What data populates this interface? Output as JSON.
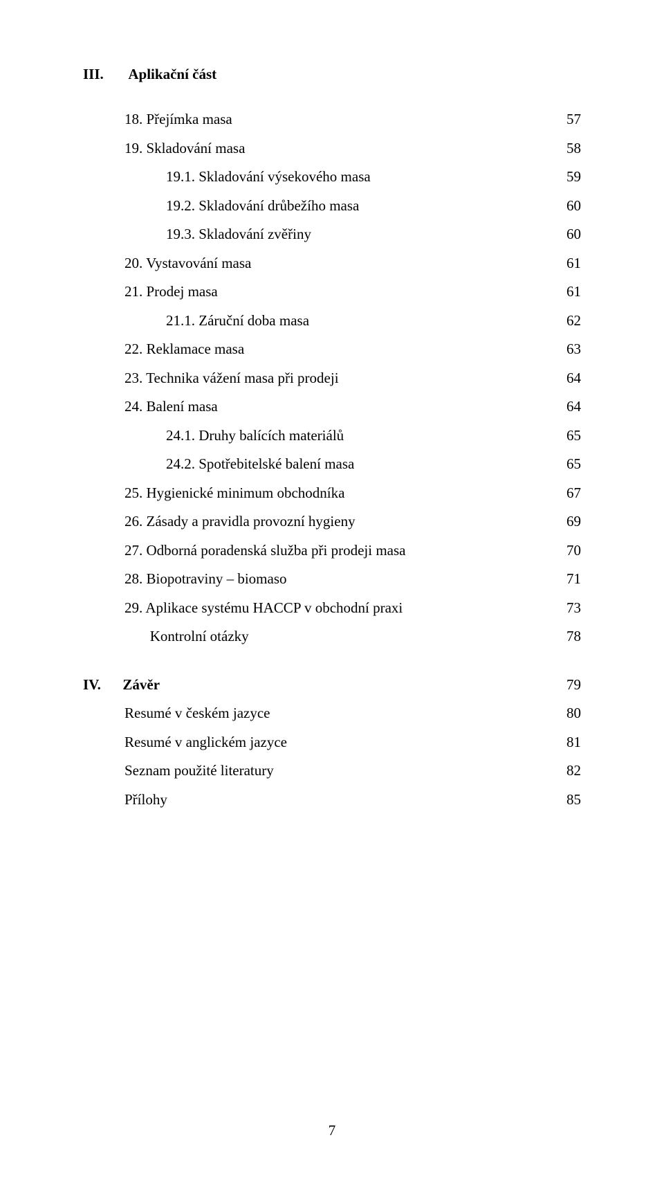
{
  "heading": {
    "roman": "III.",
    "title": "Aplikační část"
  },
  "toc": [
    {
      "indent": 1,
      "label": "18. Přejímka masa",
      "page": "57"
    },
    {
      "indent": 1,
      "label": "19. Skladování masa",
      "page": "58"
    },
    {
      "indent": 2,
      "label": "19.1. Skladování výsekového masa",
      "page": "59"
    },
    {
      "indent": 2,
      "label": "19.2. Skladování drůbežího masa",
      "page": "60"
    },
    {
      "indent": 2,
      "label": "19.3. Skladování zvěřiny",
      "page": "60"
    },
    {
      "indent": 1,
      "label": "20. Vystavování masa",
      "page": "61"
    },
    {
      "indent": 1,
      "label": "21. Prodej masa",
      "page": "61"
    },
    {
      "indent": 2,
      "label": "21.1. Záruční doba masa",
      "page": "62"
    },
    {
      "indent": 1,
      "label": "22. Reklamace masa",
      "page": "63"
    },
    {
      "indent": 1,
      "label": "23. Technika vážení masa při prodeji",
      "page": "64"
    },
    {
      "indent": 1,
      "label": "24. Balení masa",
      "page": "64"
    },
    {
      "indent": 2,
      "label": "24.1. Druhy balících materiálů",
      "page": "65"
    },
    {
      "indent": 2,
      "label": "24.2. Spotřebitelské balení masa",
      "page": "65"
    },
    {
      "indent": 1,
      "label": "25. Hygienické minimum obchodníka",
      "page": "67"
    },
    {
      "indent": 1,
      "label": "26. Zásady a pravidla provozní hygieny",
      "page": "69"
    },
    {
      "indent": 1,
      "label": "27. Odborná poradenská služba při prodeji masa",
      "page": "70"
    },
    {
      "indent": 1,
      "label": "28. Biopotraviny – biomaso",
      "page": "71"
    },
    {
      "indent": 1,
      "label": "29. Aplikace systému HACCP v obchodní praxi",
      "page": "73"
    },
    {
      "indent": 1,
      "label": "Kontrolní otázky",
      "page": "78",
      "labelPadding": "       "
    }
  ],
  "section2": {
    "roman": "IV.",
    "title": "Závěr",
    "page": "79"
  },
  "toc2": [
    {
      "indent": 1,
      "label": "Resumé v českém jazyce",
      "page": "80"
    },
    {
      "indent": 1,
      "label": "Resumé v anglickém jazyce",
      "page": "81"
    },
    {
      "indent": 1,
      "label": "Seznam použité literatury",
      "page": "82"
    },
    {
      "indent": 1,
      "label": "Přílohy",
      "page": "85"
    }
  ],
  "footer": "7"
}
